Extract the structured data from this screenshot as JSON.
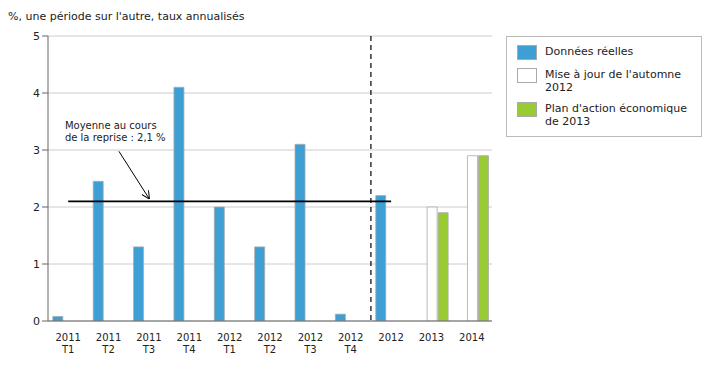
{
  "chart_data": {
    "type": "bar",
    "ylabel": "%, une période sur l'autre, taux annualisés",
    "categories": [
      "2011\nT1",
      "2011\nT2",
      "2011\nT3",
      "2011\nT4",
      "2012\nT1",
      "2012\nT2",
      "2012\nT3",
      "2012\nT4",
      "2012",
      "2013",
      "2014"
    ],
    "series": [
      {
        "name": "Données réelles",
        "color": "#3d9fd4",
        "values": [
          0.08,
          2.45,
          1.3,
          4.1,
          2.0,
          1.3,
          3.1,
          0.12,
          2.2,
          null,
          null
        ]
      },
      {
        "name": "Mise à jour de l'automne 2012",
        "color": "#ffffff",
        "values": [
          null,
          null,
          null,
          null,
          null,
          null,
          null,
          null,
          null,
          2.0,
          2.9
        ]
      },
      {
        "name": "Plan d'action économique\nde 2013",
        "color": "#99cc33",
        "values": [
          null,
          null,
          null,
          null,
          null,
          null,
          null,
          null,
          null,
          1.9,
          2.9
        ]
      }
    ],
    "ylim": [
      0,
      5
    ],
    "yticks": [
      0,
      1,
      2,
      3,
      4,
      5
    ],
    "grid": true,
    "legend": "right",
    "mean_line": 2.1,
    "mean_label": "Moyenne au cours\nde la reprise : 2,1 %",
    "section_label": "Données réelles"
  }
}
